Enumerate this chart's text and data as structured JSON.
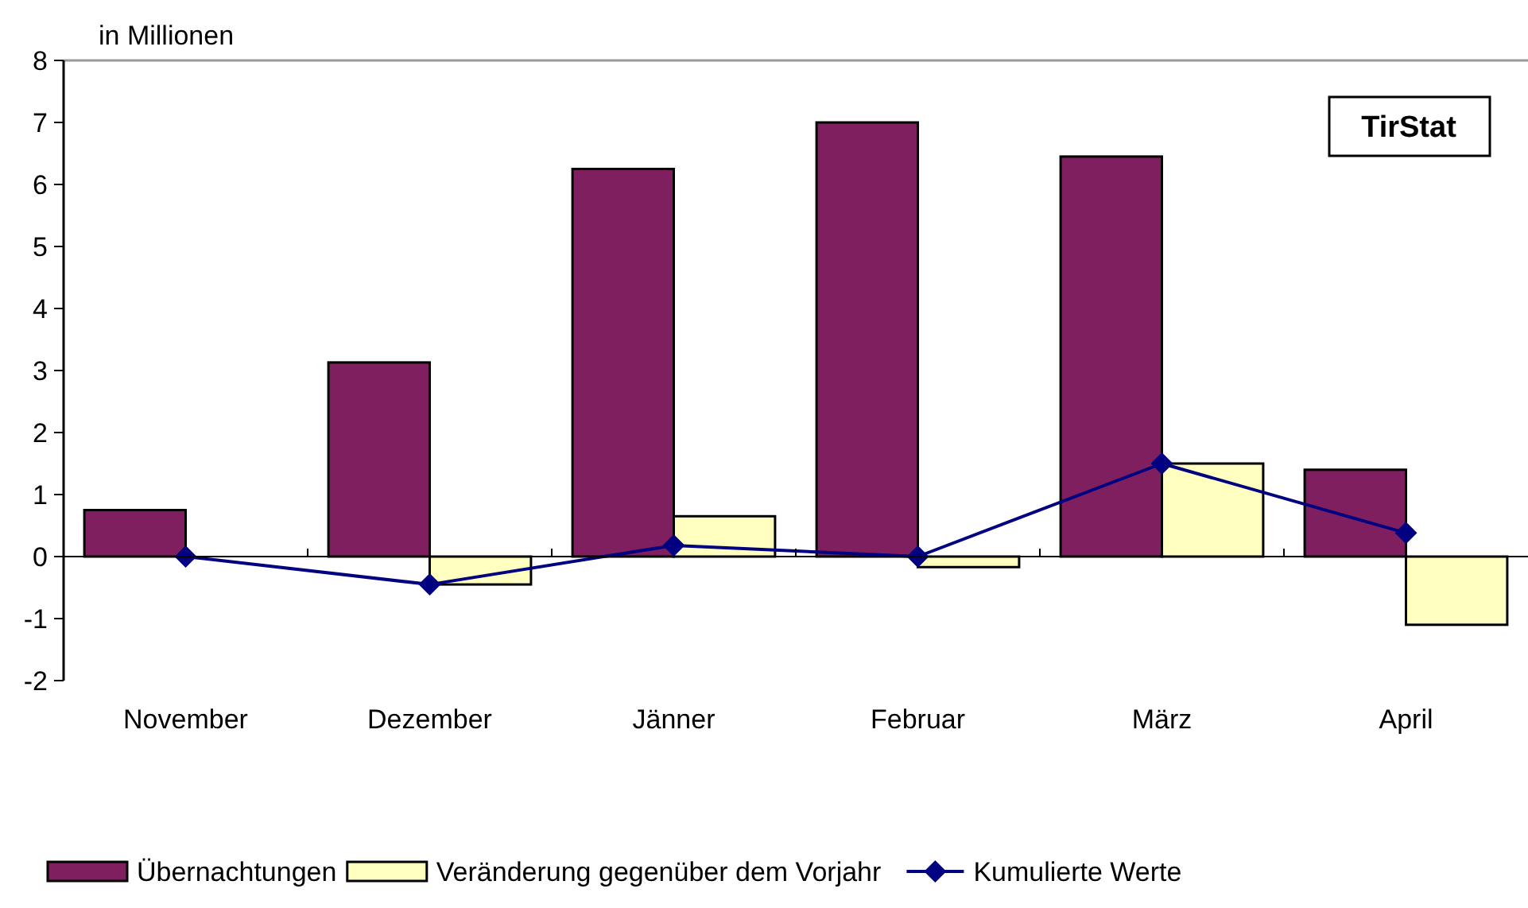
{
  "chart_data": {
    "type": "bar",
    "ylabel": "in Millionen",
    "categories": [
      "November",
      "Dezember",
      "Jänner",
      "Februar",
      "März",
      "April"
    ],
    "series": [
      {
        "name": "Übernachtungen",
        "color": "#7f1f5f",
        "values": [
          0.75,
          3.13,
          6.25,
          7.0,
          6.45,
          1.4
        ]
      },
      {
        "name": "Veränderung gegenüber dem Vorjahr",
        "color": "#ffffc0",
        "values": [
          0,
          -0.45,
          0.65,
          -0.17,
          1.5,
          -1.1
        ]
      },
      {
        "name": "Kumulierte Werte",
        "type": "line",
        "color": "#000080",
        "values": [
          0,
          -0.45,
          0.18,
          0,
          1.5,
          0.38
        ]
      }
    ],
    "ylim": [
      -2,
      8
    ],
    "yticks": [
      -2,
      -1,
      0,
      1,
      2,
      3,
      4,
      5,
      6,
      7,
      8
    ],
    "marker": "diamond",
    "legend": "bottom",
    "annotations": [
      "TirStat"
    ]
  }
}
